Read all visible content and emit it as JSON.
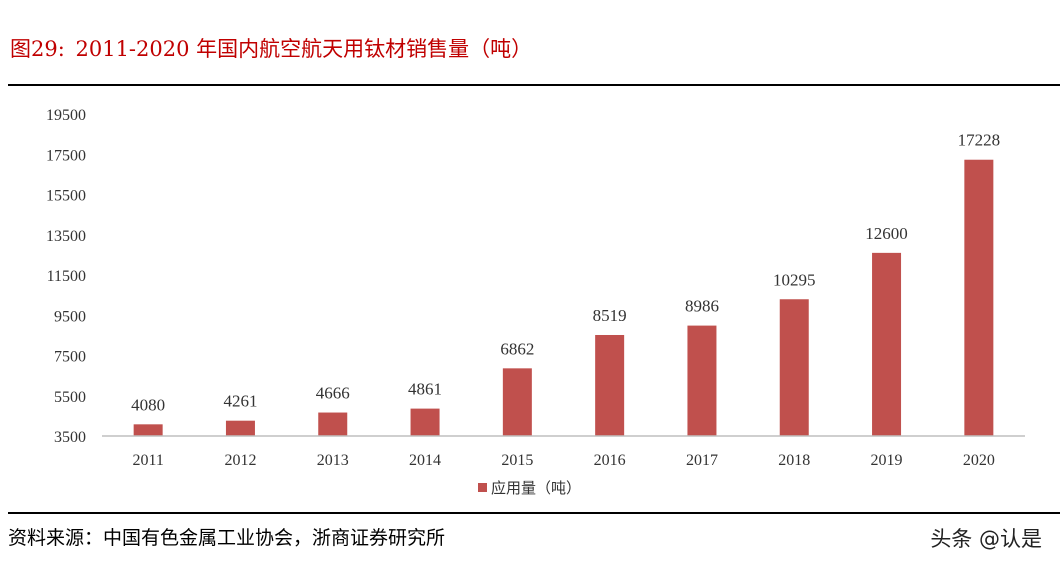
{
  "figure": {
    "number": "图29:",
    "title": "2011-2020 年国内航空航天用钛材销售量（吨）"
  },
  "source": "资料来源：中国有色金属工业协会，浙商证券研究所",
  "watermark": "头条 @认是",
  "chart_data": {
    "type": "bar",
    "categories": [
      "2011",
      "2012",
      "2013",
      "2014",
      "2015",
      "2016",
      "2017",
      "2018",
      "2019",
      "2020"
    ],
    "series": [
      {
        "name": "应用量（吨）",
        "values": [
          4080,
          4261,
          4666,
          4861,
          6862,
          8519,
          8986,
          10295,
          12600,
          17228
        ],
        "color": "#c0504d"
      }
    ],
    "yticks": [
      "3500",
      "5500",
      "7500",
      "9500",
      "11500",
      "13500",
      "15500",
      "17500",
      "19500"
    ],
    "ylim": [
      3500,
      19500
    ],
    "grid": false,
    "legend": "bottom",
    "data_labels": true
  }
}
